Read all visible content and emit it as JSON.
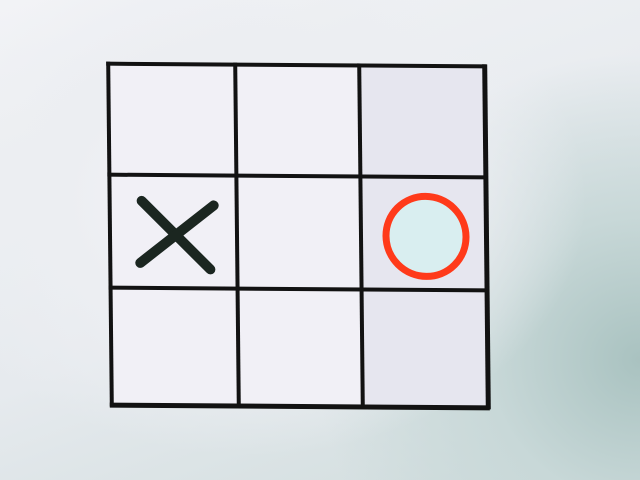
{
  "board": {
    "rows": 3,
    "cols": 3,
    "cells": [
      [
        "",
        "",
        ""
      ],
      [
        "X",
        "",
        "O"
      ],
      [
        "",
        "",
        ""
      ]
    ]
  },
  "colors": {
    "x_mark": "#1b2620",
    "o_mark": "#ff3a1a",
    "o_fill": "#d9eef0",
    "grid": "#121212"
  }
}
